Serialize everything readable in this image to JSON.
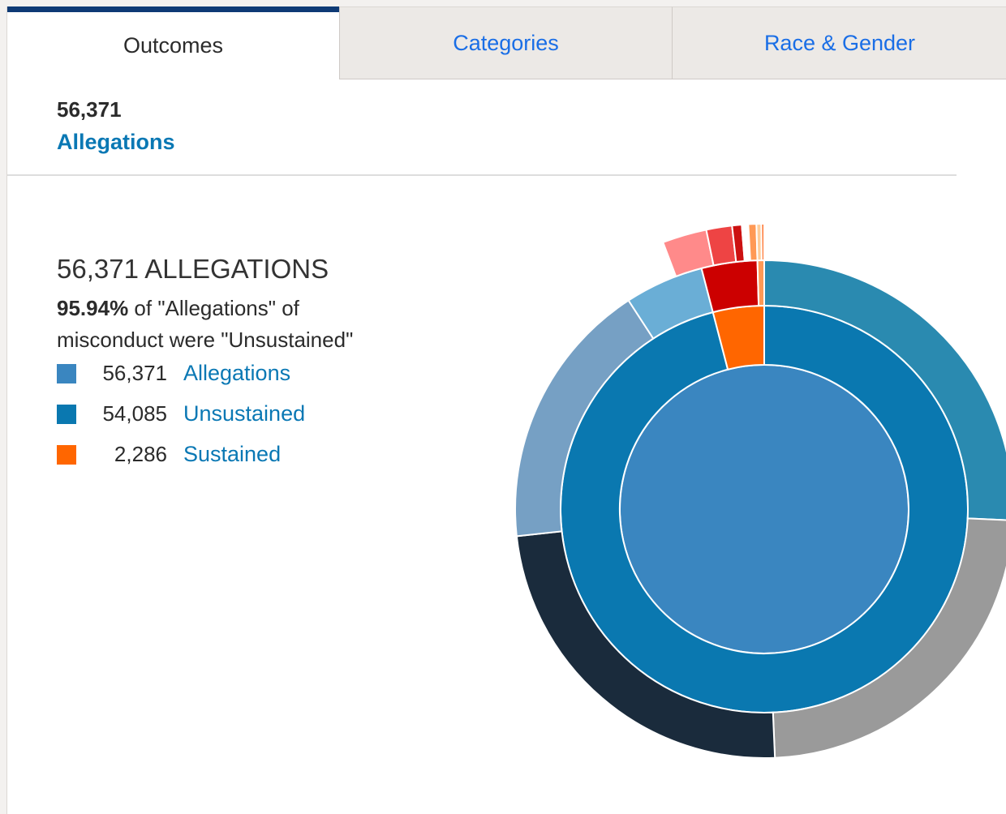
{
  "tabs": {
    "outcomes": "Outcomes",
    "categories": "Categories",
    "race_gender": "Race & Gender"
  },
  "summary": {
    "count": "56,371",
    "label": "Allegations"
  },
  "chart_text": {
    "title": "56,371 ALLEGATIONS",
    "percent": "95.94%",
    "desc_part1": " of \"Allegations\" of",
    "desc_part2": "misconduct were \"Unsustained\""
  },
  "legend": [
    {
      "value": "56,371",
      "label": "Allegations",
      "color": "#3a86c0"
    },
    {
      "value": "54,085",
      "label": "Unsustained",
      "color": "#0a78b0"
    },
    {
      "value": "2,286",
      "label": "Sustained",
      "color": "#ff6600"
    }
  ],
  "chart_data": {
    "type": "pie",
    "rings": [
      {
        "level": "inner",
        "segments": [
          {
            "value": 56371,
            "color": "#3a86c0"
          }
        ]
      },
      {
        "level": "middle",
        "segments": [
          {
            "value": 54085,
            "color": "#0a78b0"
          },
          {
            "value": 2286,
            "color": "#ff6600"
          }
        ]
      },
      {
        "level": "outer",
        "segments": [
          {
            "value": 14500,
            "color": "#2a8ab0"
          },
          {
            "value": 13300,
            "color": "#9a9a9a"
          },
          {
            "value": 13500,
            "color": "#1a2b3c"
          },
          {
            "value": 9900,
            "color": "#76a0c4"
          },
          {
            "value": 2885,
            "color": "#6aaed6"
          },
          {
            "value": 2040,
            "color": "#cc0000"
          },
          {
            "value": 246,
            "color": "#ff9955"
          }
        ]
      },
      {
        "level": "outermost",
        "segments": [
          {
            "value": 51800,
            "color": "none"
          },
          {
            "value": 1380,
            "color": "#ff8a8a"
          },
          {
            "value": 800,
            "color": "#ee4444"
          },
          {
            "value": 300,
            "color": "#cc1111"
          },
          {
            "value": 200,
            "color": "#ffffff"
          },
          {
            "value": 250,
            "color": "#ff9955"
          },
          {
            "value": 150,
            "color": "#ffcc99"
          },
          {
            "value": 90,
            "color": "#ff7733"
          }
        ]
      }
    ]
  }
}
